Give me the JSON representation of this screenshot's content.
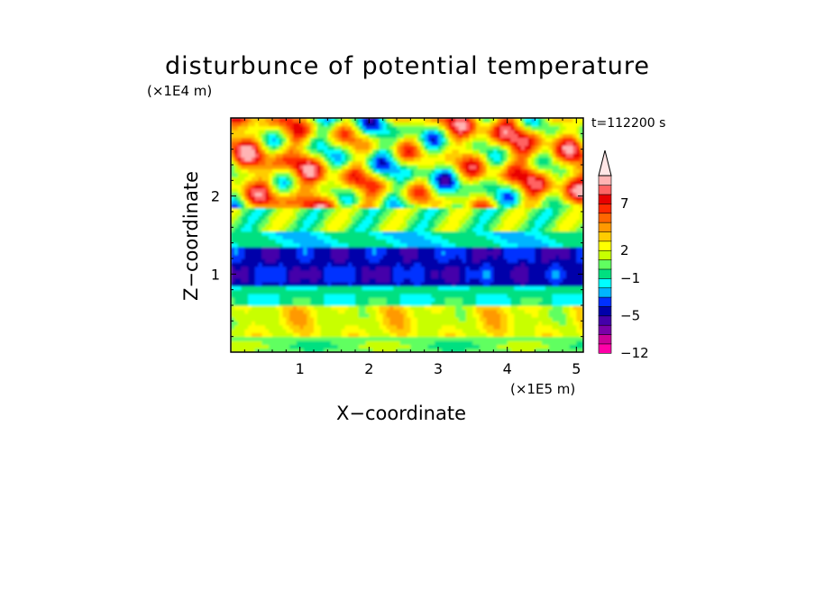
{
  "chart_data": {
    "type": "heatmap",
    "title": "disturbunce of potential temperature",
    "xlabel": "X−coordinate",
    "ylabel": "Z−coordinate",
    "x_scale_label": "(×1E5 m)",
    "y_scale_label": "(×1E4 m)",
    "time_label": "t=112200 s",
    "xlim": [
      0,
      5.1
    ],
    "ylim": [
      0,
      3.0
    ],
    "x_ticks": [
      1,
      2,
      3,
      4,
      5
    ],
    "x_tick_labels": [
      "1",
      "2",
      "3",
      "4",
      "5"
    ],
    "y_ticks": [
      1,
      2
    ],
    "y_tick_labels": [
      "1",
      "2"
    ],
    "colorbar": {
      "levels": [
        -12,
        -10,
        -8,
        -6,
        -5,
        -4,
        -3,
        -2,
        -1,
        0,
        1,
        2,
        3,
        4,
        5,
        6,
        7,
        8,
        9,
        10
      ],
      "tick_labels": [
        {
          "value": -12,
          "label": "−12"
        },
        {
          "value": -5,
          "label": "−5"
        },
        {
          "value": -1,
          "label": "−1"
        },
        {
          "value": 2,
          "label": "2"
        },
        {
          "value": 7,
          "label": "7"
        }
      ],
      "colors": [
        "#ff00a8",
        "#cc0099",
        "#7a00a8",
        "#4400aa",
        "#0000aa",
        "#0030ff",
        "#00b4ff",
        "#00ffff",
        "#00e080",
        "#60ff60",
        "#c8ff00",
        "#ffff00",
        "#ffcc00",
        "#ff9900",
        "#ff6600",
        "#ff2a00",
        "#e80000",
        "#ff6464",
        "#ffb4b4"
      ],
      "extend": "max"
    },
    "field_summary": [
      {
        "z_range": [
          0.0,
          0.2
        ],
        "value": 0.5
      },
      {
        "z_range": [
          0.2,
          0.6
        ],
        "value": 2.5
      },
      {
        "z_range": [
          0.6,
          0.85
        ],
        "value": -1.0
      },
      {
        "z_range": [
          0.85,
          1.35
        ],
        "value": -4.5
      },
      {
        "z_range": [
          1.35,
          1.55
        ],
        "value": -1.0
      },
      {
        "z_range": [
          1.55,
          1.85
        ],
        "value": 0.5
      },
      {
        "z_range": [
          1.85,
          3.0
        ],
        "value": 3.0
      }
    ]
  }
}
